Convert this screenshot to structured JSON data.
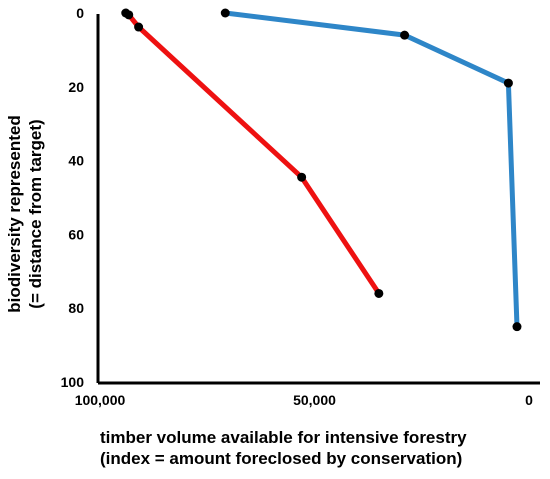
{
  "chart_data": {
    "type": "line",
    "title": "",
    "xlabel_lines": [
      "timber volume available for intensive forestry",
      "(index = amount foreclosed by conservation)"
    ],
    "ylabel_lines": [
      "biodiversity represented",
      "(= distance from target)"
    ],
    "x_axis": {
      "range": [
        100000,
        0
      ],
      "reversed": true,
      "ticks": [
        100000,
        50000,
        0
      ],
      "tick_labels": [
        "100,000",
        "50,000",
        "0"
      ]
    },
    "y_axis": {
      "range": [
        0,
        100
      ],
      "inverted": true,
      "ticks": [
        0,
        20,
        40,
        60,
        80,
        100
      ],
      "tick_labels": [
        "0",
        "20",
        "40",
        "60",
        "80",
        "100"
      ]
    },
    "grid": false,
    "legend": "none",
    "series": [
      {
        "color": "#ee1111",
        "points": [
          {
            "x": 94000,
            "y": 0
          },
          {
            "x": 93300,
            "y": 0.5
          },
          {
            "x": 91000,
            "y": 3.8
          },
          {
            "x": 53000,
            "y": 44.5
          },
          {
            "x": 35000,
            "y": 76
          }
        ]
      },
      {
        "color": "#2e86c8",
        "points": [
          {
            "x": 70800,
            "y": 0
          },
          {
            "x": 29000,
            "y": 6
          },
          {
            "x": 4800,
            "y": 19
          },
          {
            "x": 2800,
            "y": 85
          }
        ]
      }
    ],
    "marker_color": "#000000"
  }
}
